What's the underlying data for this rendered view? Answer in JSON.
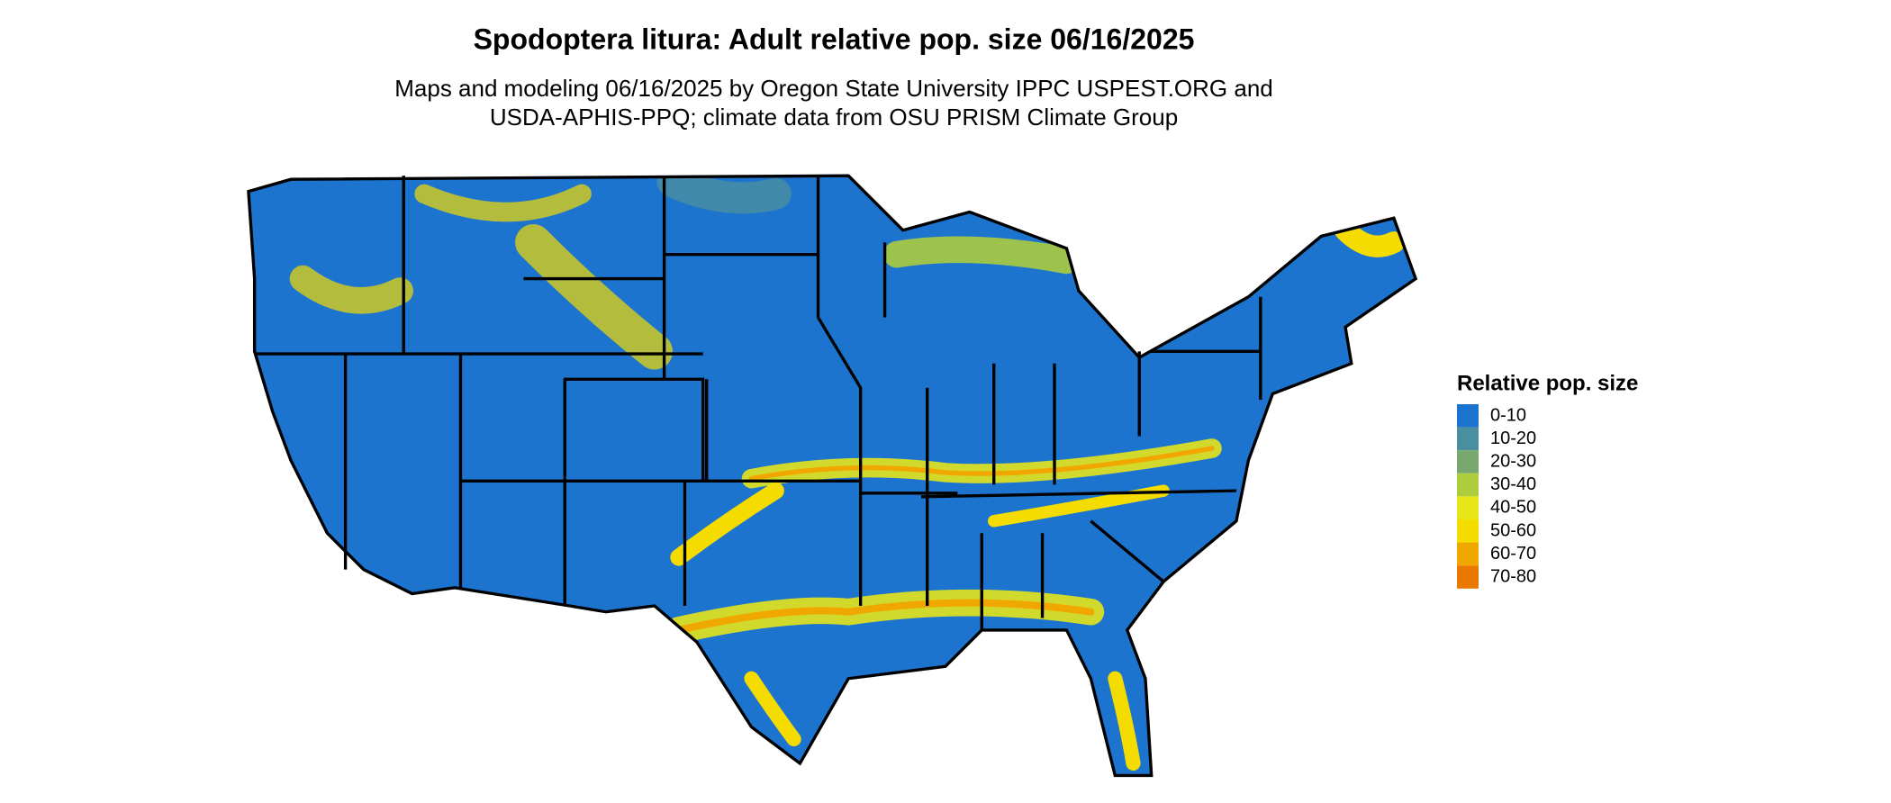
{
  "title": "Spodoptera litura: Adult relative pop. size 06/16/2025",
  "subtitle": [
    "Maps and modeling 06/16/2025 by Oregon State University IPPC USPEST.ORG and",
    "USDA-APHIS-PPQ; climate data from OSU PRISM Climate Group"
  ],
  "legend": {
    "title": "Relative pop. size",
    "items": [
      {
        "label": "0-10",
        "color": "#1c74cf"
      },
      {
        "label": "10-20",
        "color": "#4a8fa0"
      },
      {
        "label": "20-30",
        "color": "#78a86e"
      },
      {
        "label": "30-40",
        "color": "#adcc3e"
      },
      {
        "label": "40-50",
        "color": "#e6e619"
      },
      {
        "label": "50-60",
        "color": "#f5dc00"
      },
      {
        "label": "60-70",
        "color": "#f0a800"
      },
      {
        "label": "70-80",
        "color": "#e87800"
      }
    ]
  }
}
